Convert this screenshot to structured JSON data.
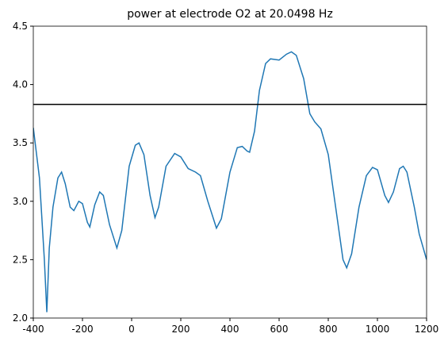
{
  "chart_data": {
    "type": "line",
    "title": "power at electrode O2 at 20.0498 Hz",
    "x": [
      -400,
      -375,
      -355,
      -345,
      -335,
      -320,
      -300,
      -285,
      -270,
      -250,
      -235,
      -215,
      -200,
      -180,
      -170,
      -150,
      -130,
      -115,
      -90,
      -60,
      -40,
      -10,
      15,
      30,
      50,
      75,
      95,
      110,
      140,
      175,
      200,
      230,
      260,
      280,
      310,
      345,
      365,
      400,
      430,
      450,
      470,
      480,
      500,
      520,
      545,
      565,
      600,
      630,
      650,
      670,
      700,
      725,
      745,
      770,
      800,
      830,
      860,
      875,
      895,
      925,
      955,
      980,
      1000,
      1030,
      1045,
      1065,
      1090,
      1105,
      1120,
      1150,
      1170,
      1200
    ],
    "values": [
      3.63,
      3.2,
      2.5,
      2.05,
      2.6,
      2.95,
      3.2,
      3.25,
      3.15,
      2.95,
      2.92,
      3.0,
      2.98,
      2.82,
      2.78,
      2.97,
      3.08,
      3.05,
      2.8,
      2.6,
      2.75,
      3.3,
      3.48,
      3.5,
      3.4,
      3.05,
      2.86,
      2.95,
      3.3,
      3.41,
      3.38,
      3.28,
      3.25,
      3.22,
      3.0,
      2.77,
      2.85,
      3.25,
      3.46,
      3.47,
      3.43,
      3.42,
      3.6,
      3.95,
      4.18,
      4.22,
      4.21,
      4.26,
      4.28,
      4.25,
      4.05,
      3.75,
      3.68,
      3.62,
      3.4,
      2.95,
      2.5,
      2.43,
      2.55,
      2.95,
      3.22,
      3.29,
      3.27,
      3.05,
      2.99,
      3.08,
      3.28,
      3.3,
      3.25,
      2.95,
      2.72,
      2.5
    ],
    "color": "#1f77b4",
    "hline": {
      "value": 3.83,
      "color": "#000000"
    },
    "xlim": [
      -400,
      1200
    ],
    "xticks": [
      -400,
      -200,
      0,
      200,
      400,
      600,
      800,
      1000,
      1200
    ],
    "ylim": [
      2,
      4.5
    ],
    "yticks": [
      {
        "value": 2,
        "label": "2.0"
      },
      2.5,
      {
        "value": 3,
        "label": "3.0"
      },
      3.5,
      {
        "value": 4,
        "label": "4.0"
      },
      4.5
    ]
  }
}
